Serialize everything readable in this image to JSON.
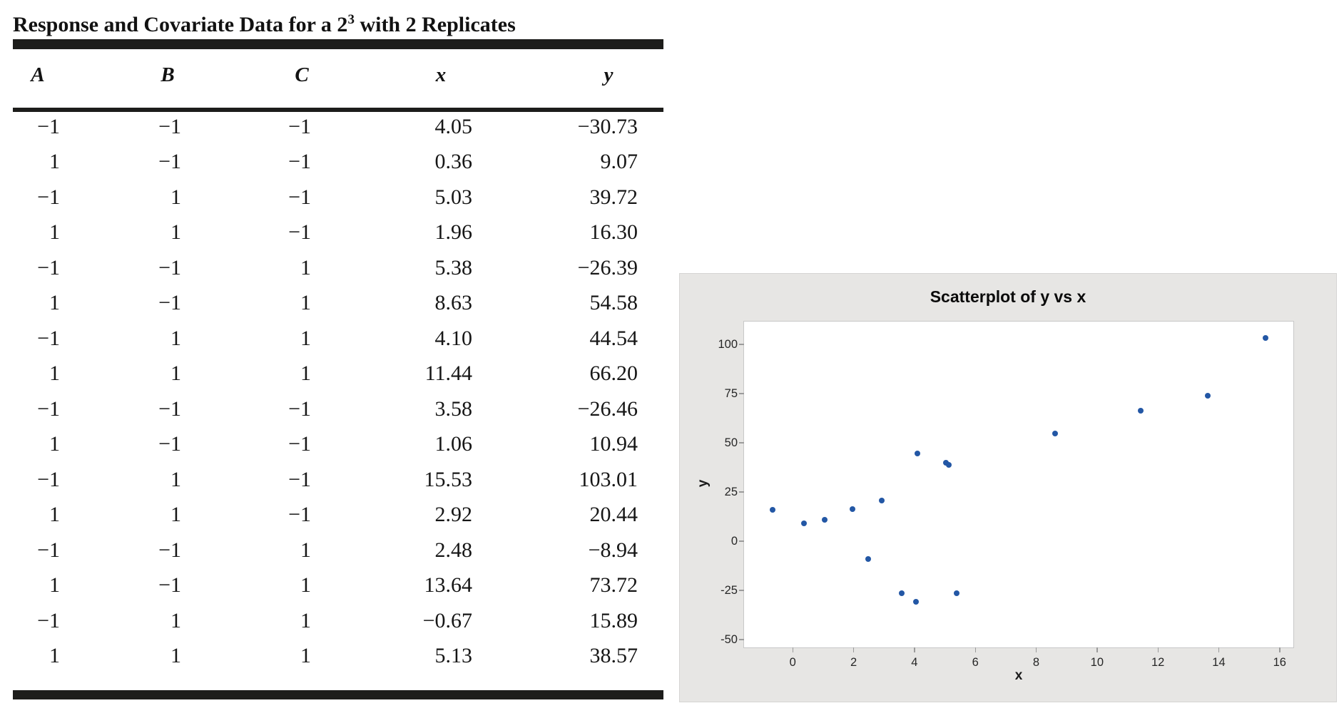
{
  "table": {
    "title": {
      "prefix": "Response and Covariate Data for a 2",
      "sup": "3",
      "suffix": " with 2 Replicates"
    },
    "columns": [
      "A",
      "B",
      "C",
      "x",
      "y"
    ],
    "rows": [
      [
        "−1",
        "−1",
        "−1",
        "4.05",
        "−30.73"
      ],
      [
        "1",
        "−1",
        "−1",
        "0.36",
        "9.07"
      ],
      [
        "−1",
        "1",
        "−1",
        "5.03",
        "39.72"
      ],
      [
        "1",
        "1",
        "−1",
        "1.96",
        "16.30"
      ],
      [
        "−1",
        "−1",
        "1",
        "5.38",
        "−26.39"
      ],
      [
        "1",
        "−1",
        "1",
        "8.63",
        "54.58"
      ],
      [
        "−1",
        "1",
        "1",
        "4.10",
        "44.54"
      ],
      [
        "1",
        "1",
        "1",
        "11.44",
        "66.20"
      ],
      [
        "−1",
        "−1",
        "−1",
        "3.58",
        "−26.46"
      ],
      [
        "1",
        "−1",
        "−1",
        "1.06",
        "10.94"
      ],
      [
        "−1",
        "1",
        "−1",
        "15.53",
        "103.01"
      ],
      [
        "1",
        "1",
        "−1",
        "2.92",
        "20.44"
      ],
      [
        "−1",
        "−1",
        "1",
        "2.48",
        "−8.94"
      ],
      [
        "1",
        "−1",
        "1",
        "13.64",
        "73.72"
      ],
      [
        "−1",
        "1",
        "1",
        "−0.67",
        "15.89"
      ],
      [
        "1",
        "1",
        "1",
        "5.13",
        "38.57"
      ]
    ]
  },
  "chart_data": {
    "type": "scatter",
    "title": "Scatterplot of y vs x",
    "xlabel": "x",
    "ylabel": "y",
    "points": [
      [
        4.05,
        -30.73
      ],
      [
        0.36,
        9.07
      ],
      [
        5.03,
        39.72
      ],
      [
        1.96,
        16.3
      ],
      [
        5.38,
        -26.39
      ],
      [
        8.63,
        54.58
      ],
      [
        4.1,
        44.54
      ],
      [
        11.44,
        66.2
      ],
      [
        3.58,
        -26.46
      ],
      [
        1.06,
        10.94
      ],
      [
        15.53,
        103.01
      ],
      [
        2.92,
        20.44
      ],
      [
        2.48,
        -8.94
      ],
      [
        13.64,
        73.72
      ],
      [
        -0.67,
        15.89
      ],
      [
        5.13,
        38.57
      ]
    ],
    "xticks": [
      0,
      2,
      4,
      6,
      8,
      10,
      12,
      14,
      16
    ],
    "yticks": [
      100,
      75,
      50,
      25,
      0,
      -25,
      -50
    ],
    "xlim": [
      -1.6,
      16.45
    ],
    "ylim": [
      -54,
      111.5
    ],
    "grid": false,
    "legend": false,
    "point_color": "#2357a5",
    "panel_bg": "#e7e6e4"
  }
}
